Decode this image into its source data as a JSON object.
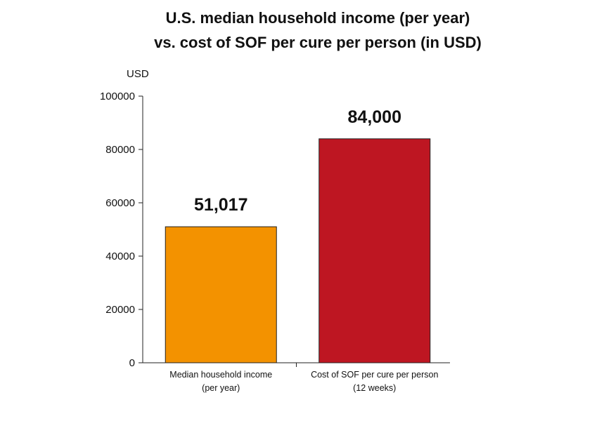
{
  "chart_data": {
    "type": "bar",
    "title_lines": [
      "U.S. median household income (per year)",
      "vs. cost of SOF per cure per person (in USD)"
    ],
    "ylabel": "USD",
    "xlabel": "",
    "ylim": [
      0,
      100000
    ],
    "yticks": [
      0,
      20000,
      40000,
      60000,
      80000,
      100000
    ],
    "grid": false,
    "categories": [
      [
        "Median household income",
        "(per year)"
      ],
      [
        "Cost of SOF per cure per person",
        "(12 weeks)"
      ]
    ],
    "values": [
      51017,
      84000
    ],
    "value_labels": [
      "51,017",
      "84,000"
    ],
    "colors": [
      "#f39200",
      "#be1622"
    ]
  }
}
